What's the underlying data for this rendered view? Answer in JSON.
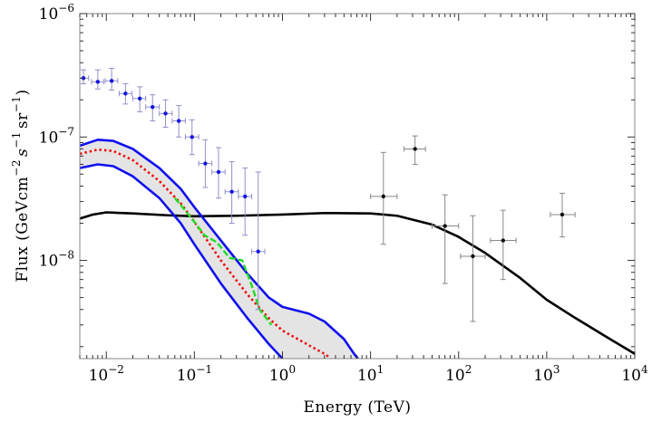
{
  "chart_data": {
    "type": "line",
    "xlabel": "Energy (TeV)",
    "ylabel": "Flux (GeVcm^-2 s^-1 sr^-1)",
    "ylabel_parts": {
      "prefix": "Flux (GeVcm",
      "exp1": "−2",
      "mid": "s",
      "exp2": "−1",
      "mid2": "sr",
      "exp3": "−1",
      "suffix": ")"
    },
    "x_scale": "log",
    "y_scale": "log",
    "xlim": [
      0.005,
      10000
    ],
    "ylim": [
      1.6e-09,
      1e-06
    ],
    "x_ticks": [
      {
        "value": 0.01,
        "base": "10",
        "exp": "−2"
      },
      {
        "value": 0.1,
        "base": "10",
        "exp": "−1"
      },
      {
        "value": 1,
        "base": "10",
        "exp": "0"
      },
      {
        "value": 10,
        "base": "10",
        "exp": "1"
      },
      {
        "value": 100,
        "base": "10",
        "exp": "2"
      },
      {
        "value": 1000,
        "base": "10",
        "exp": "3"
      },
      {
        "value": 10000,
        "base": "10",
        "exp": "4"
      }
    ],
    "y_ticks": [
      {
        "value": 1e-08,
        "base": "10",
        "exp": "−8"
      },
      {
        "value": 1e-07,
        "base": "10",
        "exp": "−7"
      },
      {
        "value": 1e-06,
        "base": "10",
        "exp": "−6"
      }
    ],
    "grid": false,
    "series": [
      {
        "style": "solid-black",
        "color": "#000000",
        "points": [
          [
            0.005,
            2.18e-08
          ],
          [
            0.007,
            2.35e-08
          ],
          [
            0.01,
            2.45e-08
          ],
          [
            0.02,
            2.4e-08
          ],
          [
            0.05,
            2.32e-08
          ],
          [
            0.1,
            2.28e-08
          ],
          [
            0.3,
            2.3e-08
          ],
          [
            1,
            2.35e-08
          ],
          [
            3,
            2.42e-08
          ],
          [
            10,
            2.4e-08
          ],
          [
            20,
            2.3e-08
          ],
          [
            50,
            1.95e-08
          ],
          [
            100,
            1.55e-08
          ],
          [
            200,
            1.15e-08
          ],
          [
            500,
            7.2e-09
          ],
          [
            1000,
            4.8e-09
          ],
          [
            2000,
            3.5e-09
          ],
          [
            5000,
            2.35e-09
          ],
          [
            10000,
            1.75e-09
          ]
        ]
      },
      {
        "style": "blue-upper-band",
        "color": "#1010ee",
        "points": [
          [
            0.005,
            8.5e-08
          ],
          [
            0.008,
            9.5e-08
          ],
          [
            0.012,
            9.3e-08
          ],
          [
            0.02,
            8e-08
          ],
          [
            0.04,
            5.6e-08
          ],
          [
            0.07,
            3.8e-08
          ],
          [
            0.1,
            2.7e-08
          ],
          [
            0.2,
            1.45e-08
          ],
          [
            0.4,
            7.8e-09
          ],
          [
            0.7,
            5e-09
          ],
          [
            1,
            4.2e-09
          ],
          [
            2,
            3.7e-09
          ],
          [
            3,
            3.2e-09
          ],
          [
            5,
            2.3e-09
          ],
          [
            6.5,
            1.75e-09
          ],
          [
            7.2,
            1.6e-09
          ]
        ]
      },
      {
        "style": "blue-lower-band",
        "color": "#1010ee",
        "points": [
          [
            0.005,
            5.6e-08
          ],
          [
            0.008,
            6e-08
          ],
          [
            0.012,
            5.8e-08
          ],
          [
            0.02,
            4.8e-08
          ],
          [
            0.04,
            3.2e-08
          ],
          [
            0.07,
            2e-08
          ],
          [
            0.1,
            1.35e-08
          ],
          [
            0.2,
            6.5e-09
          ],
          [
            0.4,
            3.4e-09
          ],
          [
            0.7,
            2.1e-09
          ],
          [
            1,
            1.6e-09
          ]
        ]
      },
      {
        "style": "red-dotted",
        "color": "#ee1010",
        "points": [
          [
            0.005,
            7.3e-08
          ],
          [
            0.008,
            7.9e-08
          ],
          [
            0.012,
            7.7e-08
          ],
          [
            0.02,
            6.5e-08
          ],
          [
            0.04,
            4.4e-08
          ],
          [
            0.07,
            2.9e-08
          ],
          [
            0.1,
            2.05e-08
          ],
          [
            0.2,
            1e-08
          ],
          [
            0.4,
            5.3e-09
          ],
          [
            0.7,
            3.4e-09
          ],
          [
            1,
            2.7e-09
          ],
          [
            2,
            2.05e-09
          ],
          [
            3,
            1.75e-09
          ],
          [
            3.5,
            1.62e-09
          ]
        ]
      },
      {
        "style": "green-dashed",
        "color": "#22dd22",
        "points": [
          [
            0.06,
            3.2e-08
          ],
          [
            0.08,
            2.5e-08
          ],
          [
            0.1,
            2.05e-08
          ],
          [
            0.13,
            1.6e-08
          ],
          [
            0.18,
            1.4e-08
          ],
          [
            0.25,
            1.05e-08
          ],
          [
            0.35,
            1e-08
          ],
          [
            0.45,
            6.2e-09
          ],
          [
            0.55,
            4e-09
          ],
          [
            0.75,
            3e-09
          ]
        ]
      }
    ],
    "band_fill_color": "#e4e4e4",
    "data_sets": [
      {
        "color": "#1515e0",
        "points": [
          {
            "x": 0.0055,
            "y": 3e-07,
            "xerr": [
              0.005,
              0.0063
            ],
            "yerr": [
              2.7e-07,
              3.5e-07
            ]
          },
          {
            "x": 0.008,
            "y": 2.8e-07,
            "xerr": [
              0.0068,
              0.0093
            ],
            "yerr": [
              2.45e-07,
              3.5e-07
            ]
          },
          {
            "x": 0.0115,
            "y": 2.85e-07,
            "xerr": [
              0.0097,
              0.0135
            ],
            "yerr": [
              2.4e-07,
              3.6e-07
            ]
          },
          {
            "x": 0.0165,
            "y": 2.25e-07,
            "xerr": [
              0.014,
              0.0195
            ],
            "yerr": [
              1.85e-07,
              2.7e-07
            ]
          },
          {
            "x": 0.024,
            "y": 2.05e-07,
            "xerr": [
              0.02,
              0.028
            ],
            "yerr": [
              1.6e-07,
              2.55e-07
            ]
          },
          {
            "x": 0.0335,
            "y": 1.75e-07,
            "xerr": [
              0.028,
              0.04
            ],
            "yerr": [
              1.35e-07,
              2.2e-07
            ]
          },
          {
            "x": 0.047,
            "y": 1.55e-07,
            "xerr": [
              0.04,
              0.056
            ],
            "yerr": [
              1.2e-07,
              2e-07
            ]
          },
          {
            "x": 0.0665,
            "y": 1.35e-07,
            "xerr": [
              0.056,
              0.079
            ],
            "yerr": [
              1e-07,
              1.8e-07
            ]
          },
          {
            "x": 0.094,
            "y": 1e-07,
            "xerr": [
              0.079,
              0.112
            ],
            "yerr": [
              7.2e-08,
              1.38e-07
            ]
          },
          {
            "x": 0.133,
            "y": 6.1e-08,
            "xerr": [
              0.112,
              0.158
            ],
            "yerr": [
              3.9e-08,
              9.5e-08
            ]
          },
          {
            "x": 0.188,
            "y": 5.2e-08,
            "xerr": [
              0.158,
              0.223
            ],
            "yerr": [
              3.2e-08,
              8.2e-08
            ]
          },
          {
            "x": 0.266,
            "y": 3.6e-08,
            "xerr": [
              0.223,
              0.316
            ],
            "yerr": [
              2e-08,
              6.3e-08
            ]
          },
          {
            "x": 0.376,
            "y": 3.3e-08,
            "xerr": [
              0.316,
              0.447
            ],
            "yerr": [
              1.6e-08,
              5.6e-08
            ]
          },
          {
            "x": 0.53,
            "y": 1.18e-08,
            "xerr": [
              0.447,
              0.63
            ],
            "yerr": [
              4e-09,
              5.2e-08
            ]
          }
        ]
      },
      {
        "color": "#111111",
        "points": [
          {
            "x": 14,
            "y": 3.3e-08,
            "xerr": [
              10,
              20
            ],
            "yerr": [
              1.35e-08,
              7.5e-08
            ]
          },
          {
            "x": 32,
            "y": 8e-08,
            "xerr": [
              24,
              42
            ],
            "yerr": [
              6e-08,
              1.02e-07
            ]
          },
          {
            "x": 70,
            "y": 1.9e-08,
            "xerr": [
              50,
              100
            ],
            "yerr": [
              6.5e-09,
              3.4e-08
            ]
          },
          {
            "x": 145,
            "y": 1.08e-08,
            "xerr": [
              105,
              200
            ],
            "yerr": [
              3.2e-09,
              2.3e-08
            ]
          },
          {
            "x": 320,
            "y": 1.45e-08,
            "xerr": [
              230,
              450
            ],
            "yerr": [
              7e-09,
              2.55e-08
            ]
          },
          {
            "x": 1500,
            "y": 2.35e-08,
            "xerr": [
              1100,
              2100
            ],
            "yerr": [
              1.55e-08,
              3.5e-08
            ]
          }
        ]
      }
    ]
  }
}
